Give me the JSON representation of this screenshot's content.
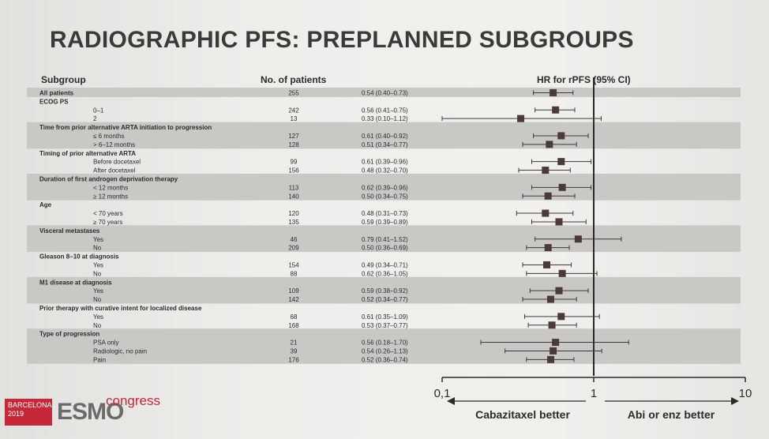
{
  "title": "RADIOGRAPHIC PFS: PREPLANNED SUBGROUPS",
  "headers": {
    "subgroup": "Subgroup",
    "patients": "No. of patients",
    "hr": "HR for rPFS (95% CI)"
  },
  "axis": {
    "ticks": [
      "0,1",
      "1",
      "10"
    ],
    "left_label": "Cabazitaxel better",
    "right_label": "Abi or enz better",
    "xlim": [
      0.1,
      10
    ],
    "scale": "log",
    "reference_line": 1
  },
  "logo": {
    "city_line1": "BARCELONA",
    "city_line2": "2019",
    "brand": "ESMO",
    "suffix": "congress"
  },
  "colors": {
    "shade": "#c9c8c5",
    "marker": "#4a3a38",
    "text": "#2b2b2b"
  },
  "chart_data": {
    "type": "forest",
    "title": "RADIOGRAPHIC PFS: PREPLANNED SUBGROUPS",
    "xlabel": "HR for rPFS (95% CI)",
    "xscale": "log",
    "xlim": [
      0.1,
      10
    ],
    "rows": [
      {
        "label": "All patients",
        "kind": "header",
        "n": "255",
        "ci": "0.54 (0.40–0.73)",
        "hr": 0.54,
        "lo": 0.4,
        "hi": 0.73,
        "shade": true
      },
      {
        "label": "ECOG PS",
        "kind": "header",
        "shade": false
      },
      {
        "label": "0–1",
        "kind": "sub",
        "n": "242",
        "ci": "0.56 (0.41–0.75)",
        "hr": 0.56,
        "lo": 0.41,
        "hi": 0.75,
        "shade": false
      },
      {
        "label": "2",
        "kind": "sub",
        "n": "13",
        "ci": "0.33 (0.10–1.12)",
        "hr": 0.33,
        "lo": 0.1,
        "hi": 1.12,
        "shade": false
      },
      {
        "label": "Time from prior alternative ARTA initiation to progression",
        "kind": "header",
        "shade": true
      },
      {
        "label": "≤ 6 months",
        "kind": "sub",
        "n": "127",
        "ci": "0.61 (0.40–0.92)",
        "hr": 0.61,
        "lo": 0.4,
        "hi": 0.92,
        "shade": true
      },
      {
        "label": "> 6–12 months",
        "kind": "sub",
        "n": "128",
        "ci": "0.51 (0.34–0.77)",
        "hr": 0.51,
        "lo": 0.34,
        "hi": 0.77,
        "shade": true
      },
      {
        "label": "Timing of prior alternative ARTA",
        "kind": "header",
        "shade": false
      },
      {
        "label": "Before docetaxel",
        "kind": "sub",
        "n": "99",
        "ci": "0.61 (0.39–0.96)",
        "hr": 0.61,
        "lo": 0.39,
        "hi": 0.96,
        "shade": false
      },
      {
        "label": "After docetaxel",
        "kind": "sub",
        "n": "156",
        "ci": "0.48 (0.32–0.70)",
        "hr": 0.48,
        "lo": 0.32,
        "hi": 0.7,
        "shade": false
      },
      {
        "label": "Duration of first androgen deprivation therapy",
        "kind": "header",
        "shade": true
      },
      {
        "label": "< 12 months",
        "kind": "sub",
        "n": "113",
        "ci": "0.62 (0.39–0.96)",
        "hr": 0.62,
        "lo": 0.39,
        "hi": 0.96,
        "shade": true
      },
      {
        "label": "≥ 12 months",
        "kind": "sub",
        "n": "140",
        "ci": "0.50 (0.34–0.75)",
        "hr": 0.5,
        "lo": 0.34,
        "hi": 0.75,
        "shade": true
      },
      {
        "label": "Age",
        "kind": "header",
        "shade": false
      },
      {
        "label": "< 70 years",
        "kind": "sub",
        "n": "120",
        "ci": "0.48 (0.31–0.73)",
        "hr": 0.48,
        "lo": 0.31,
        "hi": 0.73,
        "shade": false
      },
      {
        "label": "≥ 70 years",
        "kind": "sub",
        "n": "135",
        "ci": "0.59 (0.39–0.89)",
        "hr": 0.59,
        "lo": 0.39,
        "hi": 0.89,
        "shade": false
      },
      {
        "label": "Visceral metastases",
        "kind": "header",
        "shade": true
      },
      {
        "label": "Yes",
        "kind": "sub",
        "n": "46",
        "ci": "0.79 (0.41–1.52)",
        "hr": 0.79,
        "lo": 0.41,
        "hi": 1.52,
        "shade": true
      },
      {
        "label": "No",
        "kind": "sub",
        "n": "209",
        "ci": "0.50 (0.36–0.69)",
        "hr": 0.5,
        "lo": 0.36,
        "hi": 0.69,
        "shade": true
      },
      {
        "label": "Gleason 8–10 at diagnosis",
        "kind": "header",
        "shade": false
      },
      {
        "label": "Yes",
        "kind": "sub",
        "n": "154",
        "ci": "0.49 (0.34–0.71)",
        "hr": 0.49,
        "lo": 0.34,
        "hi": 0.71,
        "shade": false
      },
      {
        "label": "No",
        "kind": "sub",
        "n": "88",
        "ci": "0.62 (0.36–1.05)",
        "hr": 0.62,
        "lo": 0.36,
        "hi": 1.05,
        "shade": false
      },
      {
        "label": "M1 disease at diagnosis",
        "kind": "header",
        "shade": true
      },
      {
        "label": "Yes",
        "kind": "sub",
        "n": "109",
        "ci": "0.59 (0.38–0.92)",
        "hr": 0.59,
        "lo": 0.38,
        "hi": 0.92,
        "shade": true
      },
      {
        "label": "No",
        "kind": "sub",
        "n": "142",
        "ci": "0.52 (0.34–0.77)",
        "hr": 0.52,
        "lo": 0.34,
        "hi": 0.77,
        "shade": true
      },
      {
        "label": "Prior therapy with curative intent for localized disease",
        "kind": "header",
        "shade": false
      },
      {
        "label": "Yes",
        "kind": "sub",
        "n": "68",
        "ci": "0.61 (0.35–1.09)",
        "hr": 0.61,
        "lo": 0.35,
        "hi": 1.09,
        "shade": false
      },
      {
        "label": "No",
        "kind": "sub",
        "n": "168",
        "ci": "0.53 (0.37–0.77)",
        "hr": 0.53,
        "lo": 0.37,
        "hi": 0.77,
        "shade": false
      },
      {
        "label": "Type of progression",
        "kind": "header",
        "shade": true
      },
      {
        "label": "PSA only",
        "kind": "sub",
        "n": "21",
        "ci": "0.56 (0.18–1.70)",
        "hr": 0.56,
        "lo": 0.18,
        "hi": 1.7,
        "shade": true
      },
      {
        "label": "Radiologic, no pain",
        "kind": "sub",
        "n": "39",
        "ci": "0.54 (0.26–1.13)",
        "hr": 0.54,
        "lo": 0.26,
        "hi": 1.13,
        "shade": true
      },
      {
        "label": "Pain",
        "kind": "sub",
        "n": "176",
        "ci": "0.52 (0.36–0.74)",
        "hr": 0.52,
        "lo": 0.36,
        "hi": 0.74,
        "shade": true
      }
    ]
  }
}
